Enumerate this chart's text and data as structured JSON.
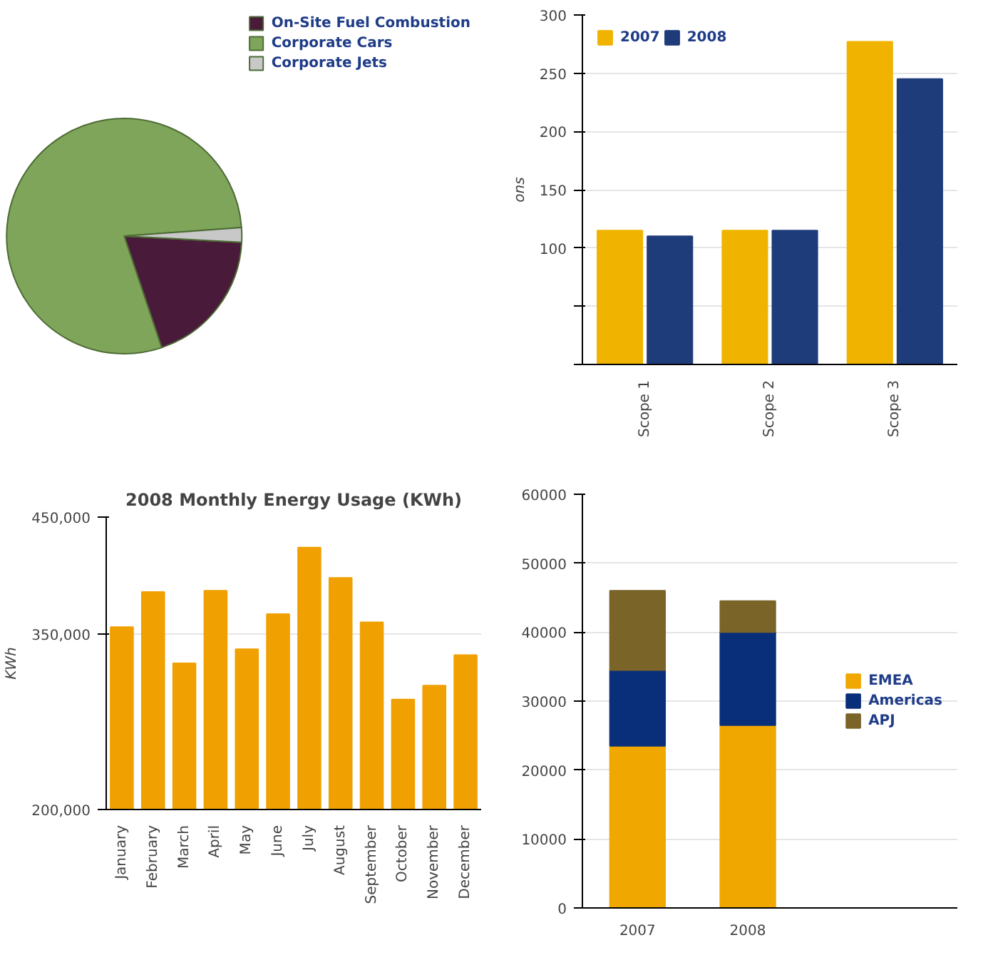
{
  "chart_data": [
    {
      "type": "pie",
      "categories": [
        "On-Site Fuel Combustion",
        "Corporate Cars",
        "Corporate Jets"
      ],
      "values": [
        19,
        79,
        2
      ],
      "colors": [
        "#4a1a3a",
        "#7fa55a",
        "#c8c8c8"
      ],
      "legend": "right"
    },
    {
      "type": "bar",
      "categories": [
        "Scope 1",
        "Scope 2",
        "Scope 3"
      ],
      "ylabel": "ons",
      "ylim": [
        0,
        300
      ],
      "yticks": [
        {
          "value": 0,
          "label": null
        },
        {
          "value": 50,
          "label": null
        },
        100,
        150,
        200,
        250,
        300
      ],
      "grid": "y",
      "legend": "top left",
      "series": [
        {
          "name": "2007",
          "color": "#f0b400",
          "values": [
            115,
            115,
            277
          ]
        },
        {
          "name": "2008",
          "color": "#1f3c7a",
          "values": [
            110,
            115,
            245
          ]
        }
      ]
    },
    {
      "type": "bar",
      "title": "2008 Monthly Energy Usage (KWh)",
      "ylabel": "KWh",
      "categories": [
        "January",
        "February",
        "March",
        "April",
        "May",
        "June",
        "July",
        "August",
        "September",
        "October",
        "November",
        "December"
      ],
      "ylim": [
        200000,
        450000
      ],
      "yticks": [
        {
          "value": 200000,
          "label": "200,000"
        },
        {
          "value": 350000,
          "label": "350,000"
        },
        {
          "value": 450000,
          "label": "450,000"
        }
      ],
      "grid": "y",
      "color": "#f0a000",
      "values": [
        356000,
        386000,
        325000,
        387000,
        337000,
        367000,
        424000,
        398000,
        360000,
        294000,
        306000,
        332000
      ]
    },
    {
      "type": "bar",
      "stacked": true,
      "categories": [
        "2007",
        "2008"
      ],
      "ylim": [
        0,
        60000
      ],
      "yticks": [
        0,
        10000,
        20000,
        30000,
        40000,
        50000,
        60000
      ],
      "grid": "y",
      "legend": "right",
      "series": [
        {
          "name": "EMEA",
          "color": "#f0a800",
          "values": [
            23500,
            26500
          ]
        },
        {
          "name": "Americas",
          "color": "#0a2f7a",
          "values": [
            11000,
            13500
          ]
        },
        {
          "name": "APJ",
          "color": "#7a6428",
          "values": [
            11500,
            4500
          ]
        }
      ]
    }
  ]
}
